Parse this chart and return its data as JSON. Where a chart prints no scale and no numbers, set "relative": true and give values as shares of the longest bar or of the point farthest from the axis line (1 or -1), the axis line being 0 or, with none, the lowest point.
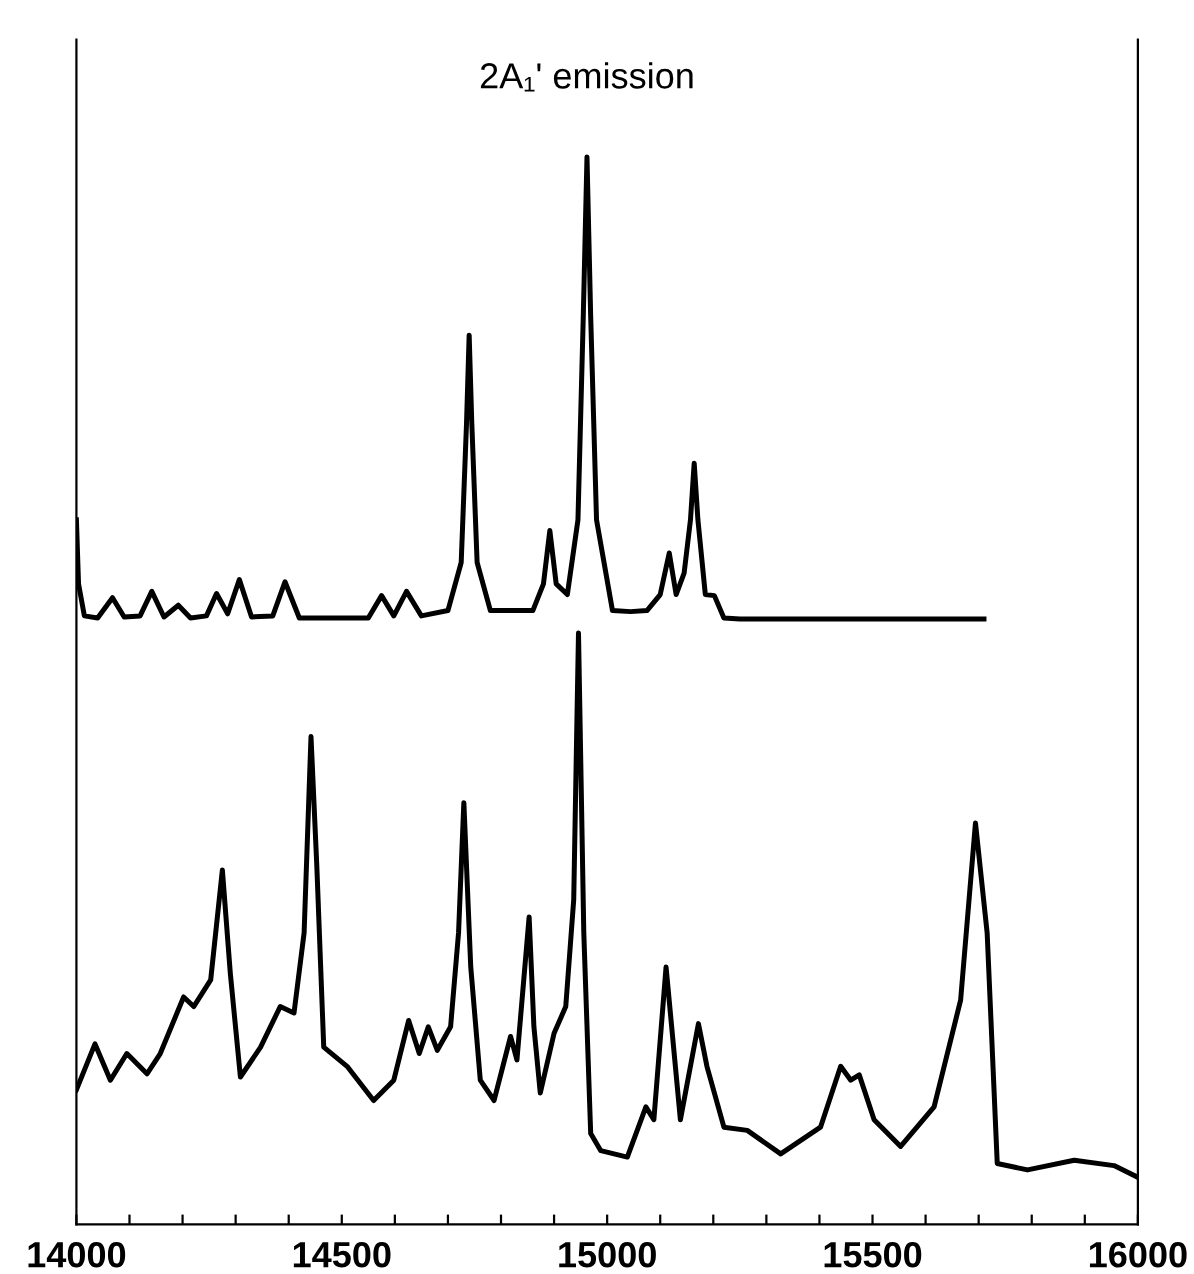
{
  "chart_data": {
    "type": "line",
    "relative": true,
    "xlim": [
      14000,
      16000
    ],
    "xticks": [
      14000,
      {
        "value": 14100,
        "label": null
      },
      {
        "value": 14200,
        "label": null
      },
      {
        "value": 14300,
        "label": null
      },
      {
        "value": 14400,
        "label": null
      },
      14500,
      {
        "value": 14600,
        "label": null
      },
      {
        "value": 14700,
        "label": null
      },
      {
        "value": 14800,
        "label": null
      },
      {
        "value": 14900,
        "label": null
      },
      15000,
      {
        "value": 15100,
        "label": null
      },
      {
        "value": 15200,
        "label": null
      },
      {
        "value": 15300,
        "label": null
      },
      {
        "value": 15400,
        "label": null
      },
      15500,
      {
        "value": 15600,
        "label": null
      },
      {
        "value": 15700,
        "label": null
      },
      {
        "value": 15800,
        "label": null
      },
      {
        "value": 15900,
        "label": null
      },
      16000
    ],
    "annotations": [
      {
        "text": "2A₁' emission",
        "x": 14962,
        "y": 1.0
      }
    ],
    "grid": false,
    "legend": false,
    "marker": "none",
    "line_style": "solid",
    "series": [
      {
        "color": "#000000",
        "x": [
          14000,
          14004,
          14015,
          14040,
          14068,
          14090,
          14120,
          14142,
          14165,
          14192,
          14215,
          14245,
          14264,
          14285,
          14307,
          14330,
          14370,
          14393,
          14420,
          14550,
          14575,
          14598,
          14622,
          14650,
          14700,
          14725,
          14735,
          14740,
          14745,
          14755,
          14780,
          14860,
          14880,
          14892,
          14904,
          14925,
          14945,
          14955,
          14962,
          14969,
          14980,
          15010,
          15044,
          15075,
          15100,
          15117,
          15130,
          15145,
          15157,
          15164,
          15171,
          15185,
          15202,
          15220,
          15250,
          15710
        ],
        "values": [
          0.66,
          0.6,
          0.57,
          0.568,
          0.587,
          0.569,
          0.57,
          0.593,
          0.569,
          0.58,
          0.568,
          0.57,
          0.591,
          0.572,
          0.604,
          0.569,
          0.57,
          0.602,
          0.568,
          0.568,
          0.589,
          0.57,
          0.593,
          0.57,
          0.575,
          0.62,
          0.75,
          0.833,
          0.75,
          0.62,
          0.575,
          0.575,
          0.6,
          0.65,
          0.6,
          0.59,
          0.66,
          0.85,
          1.0,
          0.85,
          0.66,
          0.575,
          0.574,
          0.575,
          0.59,
          0.629,
          0.59,
          0.61,
          0.66,
          0.713,
          0.66,
          0.59,
          0.589,
          0.568,
          0.567,
          0.567
        ]
      },
      {
        "color": "#000000",
        "x": [
          14000,
          14035,
          14064,
          14095,
          14133,
          14158,
          14202,
          14221,
          14253,
          14275,
          14290,
          14309,
          14347,
          14384,
          14410,
          14429,
          14442,
          14453,
          14466,
          14510,
          14560,
          14598,
          14626,
          14646,
          14663,
          14680,
          14705,
          14720,
          14730,
          14743,
          14761,
          14787,
          14818,
          14830,
          14853,
          14862,
          14874,
          14900,
          14922,
          14937,
          14946,
          14956,
          14969,
          14988,
          15038,
          15073,
          15088,
          15111,
          15138,
          15172,
          15188,
          15220,
          15264,
          15327,
          15402,
          15440,
          15459,
          15475,
          15503,
          15553,
          15616,
          15666,
          15694,
          15716,
          15735,
          15792,
          15880,
          15955,
          16000
        ],
        "values": [
          0.126,
          0.169,
          0.135,
          0.16,
          0.141,
          0.16,
          0.213,
          0.204,
          0.229,
          0.332,
          0.235,
          0.138,
          0.166,
          0.204,
          0.198,
          0.273,
          0.457,
          0.335,
          0.166,
          0.148,
          0.116,
          0.135,
          0.191,
          0.16,
          0.185,
          0.163,
          0.185,
          0.273,
          0.395,
          0.241,
          0.135,
          0.116,
          0.176,
          0.154,
          0.288,
          0.185,
          0.123,
          0.179,
          0.204,
          0.304,
          0.554,
          0.273,
          0.085,
          0.069,
          0.063,
          0.11,
          0.098,
          0.241,
          0.098,
          0.188,
          0.148,
          0.091,
          0.088,
          0.066,
          0.091,
          0.148,
          0.135,
          0.14,
          0.098,
          0.073,
          0.11,
          0.21,
          0.376,
          0.273,
          0.057,
          0.051,
          0.06,
          0.055,
          0.044
        ]
      }
    ]
  }
}
